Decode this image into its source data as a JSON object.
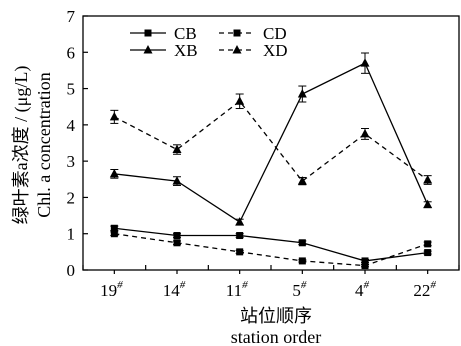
{
  "chart_data": {
    "type": "line",
    "title": "",
    "xlabel": [
      "站位顺序",
      "station order"
    ],
    "ylabel": [
      "绿叶素a浓度 / (μg/L)",
      "Chl. a concentration"
    ],
    "categories": [
      "19#",
      "14#",
      "11#",
      "5#",
      "4#",
      "22#"
    ],
    "ylim": [
      0,
      7
    ],
    "yticks": [
      "0",
      "1",
      "2",
      "3",
      "4",
      "5",
      "6",
      "7"
    ],
    "grid": false,
    "legend_position": "top",
    "series": [
      {
        "name": "CB",
        "marker": "square",
        "line": "solid",
        "values": [
          1.15,
          0.95,
          0.95,
          0.75,
          0.25,
          0.48
        ],
        "errors": [
          0.06,
          0.05,
          0.05,
          0.05,
          0.04,
          0.04
        ]
      },
      {
        "name": "CD",
        "marker": "square",
        "line": "dashed",
        "values": [
          1.0,
          0.75,
          0.5,
          0.25,
          0.12,
          0.72
        ],
        "errors": [
          0.05,
          0.05,
          0.04,
          0.03,
          0.03,
          0.05
        ]
      },
      {
        "name": "XB",
        "marker": "triangle",
        "line": "solid",
        "values": [
          2.65,
          2.45,
          1.32,
          4.85,
          5.7,
          1.8
        ],
        "errors": [
          0.12,
          0.12,
          0.08,
          0.22,
          0.28,
          0.08
        ]
      },
      {
        "name": "XD",
        "marker": "triangle",
        "line": "dashed",
        "values": [
          4.22,
          3.32,
          4.65,
          2.45,
          3.75,
          2.48
        ],
        "errors": [
          0.18,
          0.13,
          0.2,
          0.1,
          0.15,
          0.12
        ]
      }
    ]
  }
}
